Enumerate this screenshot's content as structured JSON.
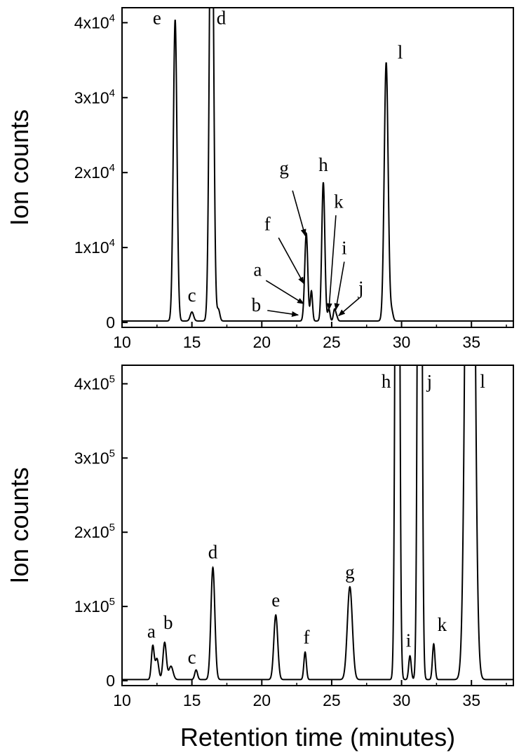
{
  "chart_data": [
    {
      "type": "line",
      "title": "",
      "xlabel": "",
      "ylabel": "Ion counts",
      "xlim": [
        10,
        38
      ],
      "ylim": [
        0,
        42000
      ],
      "xticks": [
        10,
        15,
        20,
        25,
        30,
        35
      ],
      "yticks": [
        {
          "value": 0,
          "mant": "0",
          "exp": ""
        },
        {
          "value": 10000,
          "mant": "1x10",
          "exp": "4"
        },
        {
          "value": 20000,
          "mant": "2x10",
          "exp": "4"
        },
        {
          "value": 30000,
          "mant": "3x10",
          "exp": "4"
        },
        {
          "value": 40000,
          "mant": "4x10",
          "exp": "4"
        }
      ],
      "baseline": 200,
      "peaks": [
        {
          "label": "e",
          "x": 13.8,
          "y": 40200,
          "width": 0.13
        },
        {
          "label": "c",
          "x": 15.0,
          "y": 1200,
          "width": 0.12
        },
        {
          "label": "d",
          "x": 16.4,
          "y": 70000,
          "width": 0.14
        },
        {
          "label": "",
          "x": 16.9,
          "y": 1500,
          "width": 0.1
        },
        {
          "label": "b",
          "x": 23.0,
          "y": 800,
          "width": 0.08
        },
        {
          "label": "a",
          "x": 23.1,
          "y": 2200,
          "width": 0.08
        },
        {
          "label": "f",
          "x": 23.2,
          "y": 10500,
          "width": 0.1
        },
        {
          "label": "g",
          "x": 23.55,
          "y": 4000,
          "width": 0.08
        },
        {
          "label": "h",
          "x": 24.4,
          "y": 18500,
          "width": 0.11
        },
        {
          "label": "k",
          "x": 24.8,
          "y": 1600,
          "width": 0.08
        },
        {
          "label": "i",
          "x": 25.2,
          "y": 1500,
          "width": 0.08
        },
        {
          "label": "j",
          "x": 25.35,
          "y": 600,
          "width": 0.08
        },
        {
          "label": "l",
          "x": 28.9,
          "y": 34500,
          "width": 0.14
        },
        {
          "label": "",
          "x": 29.3,
          "y": 1200,
          "width": 0.1
        }
      ],
      "annotations": [
        {
          "text": "e",
          "x": 12.5,
          "y": 39800
        },
        {
          "text": "d",
          "x": 17.1,
          "y": 39800
        },
        {
          "text": "c",
          "x": 15.0,
          "y": 2800
        },
        {
          "text": "l",
          "x": 29.9,
          "y": 35200
        },
        {
          "text": "g",
          "x": 21.6,
          "y": 19800
        },
        {
          "text": "h",
          "x": 24.4,
          "y": 20200
        },
        {
          "text": "k",
          "x": 25.5,
          "y": 15300
        },
        {
          "text": "f",
          "x": 20.4,
          "y": 12300
        },
        {
          "text": "i",
          "x": 25.9,
          "y": 9100
        },
        {
          "text": "a",
          "x": 19.7,
          "y": 6200
        },
        {
          "text": "j",
          "x": 27.1,
          "y": 3800
        },
        {
          "text": "b",
          "x": 19.6,
          "y": 1500
        }
      ],
      "arrows": [
        {
          "from": [
            22.2,
            17600
          ],
          "to": [
            23.1,
            11600
          ]
        },
        {
          "from": [
            21.2,
            11300
          ],
          "to": [
            23.0,
            5200
          ]
        },
        {
          "from": [
            20.3,
            5600
          ],
          "to": [
            23.0,
            2500
          ]
        },
        {
          "from": [
            20.4,
            1600
          ],
          "to": [
            22.6,
            1000
          ]
        },
        {
          "from": [
            25.3,
            14300
          ],
          "to": [
            24.8,
            1700
          ]
        },
        {
          "from": [
            25.9,
            8100
          ],
          "to": [
            25.3,
            1700
          ]
        },
        {
          "from": [
            27.0,
            3300
          ],
          "to": [
            25.5,
            900
          ]
        }
      ]
    },
    {
      "type": "line",
      "title": "",
      "xlabel": "Retention time (minutes)",
      "ylabel": "Ion counts",
      "xlim": [
        10,
        38
      ],
      "ylim": [
        0,
        425000
      ],
      "xticks": [
        10,
        15,
        20,
        25,
        30,
        35
      ],
      "yticks": [
        {
          "value": 0,
          "mant": "0",
          "exp": ""
        },
        {
          "value": 100000,
          "mant": "1x10",
          "exp": "5"
        },
        {
          "value": 200000,
          "mant": "2x10",
          "exp": "5"
        },
        {
          "value": 300000,
          "mant": "3x10",
          "exp": "5"
        },
        {
          "value": 400000,
          "mant": "4x10",
          "exp": "5"
        }
      ],
      "baseline": 1500,
      "peaks": [
        {
          "label": "a",
          "x": 12.2,
          "y": 45000,
          "width": 0.1
        },
        {
          "label": "",
          "x": 12.5,
          "y": 28000,
          "width": 0.12
        },
        {
          "label": "b",
          "x": 13.05,
          "y": 50000,
          "width": 0.12
        },
        {
          "label": "",
          "x": 13.5,
          "y": 18000,
          "width": 0.15
        },
        {
          "label": "c",
          "x": 15.3,
          "y": 13000,
          "width": 0.1
        },
        {
          "label": "d",
          "x": 16.5,
          "y": 151000,
          "width": 0.14
        },
        {
          "label": "e",
          "x": 21.0,
          "y": 87000,
          "width": 0.14
        },
        {
          "label": "f",
          "x": 23.1,
          "y": 37000,
          "width": 0.09
        },
        {
          "label": "g",
          "x": 26.3,
          "y": 125000,
          "width": 0.18
        },
        {
          "label": "h",
          "x": 29.7,
          "y": 1500000,
          "width": 0.12
        },
        {
          "label": "i",
          "x": 30.6,
          "y": 32000,
          "width": 0.09
        },
        {
          "label": "j",
          "x": 31.3,
          "y": 1500000,
          "width": 0.12
        },
        {
          "label": "k",
          "x": 32.3,
          "y": 48000,
          "width": 0.09
        },
        {
          "label": "l",
          "x": 34.9,
          "y": 1500000,
          "width": 0.25
        }
      ],
      "annotations": [
        {
          "text": "a",
          "x": 12.1,
          "y": 58000
        },
        {
          "text": "b",
          "x": 13.3,
          "y": 70000
        },
        {
          "text": "c",
          "x": 15.0,
          "y": 23000
        },
        {
          "text": "d",
          "x": 16.5,
          "y": 165000
        },
        {
          "text": "e",
          "x": 21.0,
          "y": 100000
        },
        {
          "text": "f",
          "x": 23.2,
          "y": 50000
        },
        {
          "text": "g",
          "x": 26.3,
          "y": 138000
        },
        {
          "text": "h",
          "x": 28.9,
          "y": 395000
        },
        {
          "text": "i",
          "x": 30.5,
          "y": 46000
        },
        {
          "text": "j",
          "x": 32.0,
          "y": 395000
        },
        {
          "text": "k",
          "x": 32.9,
          "y": 67000
        },
        {
          "text": "l",
          "x": 35.8,
          "y": 395000
        }
      ],
      "arrows": []
    }
  ]
}
